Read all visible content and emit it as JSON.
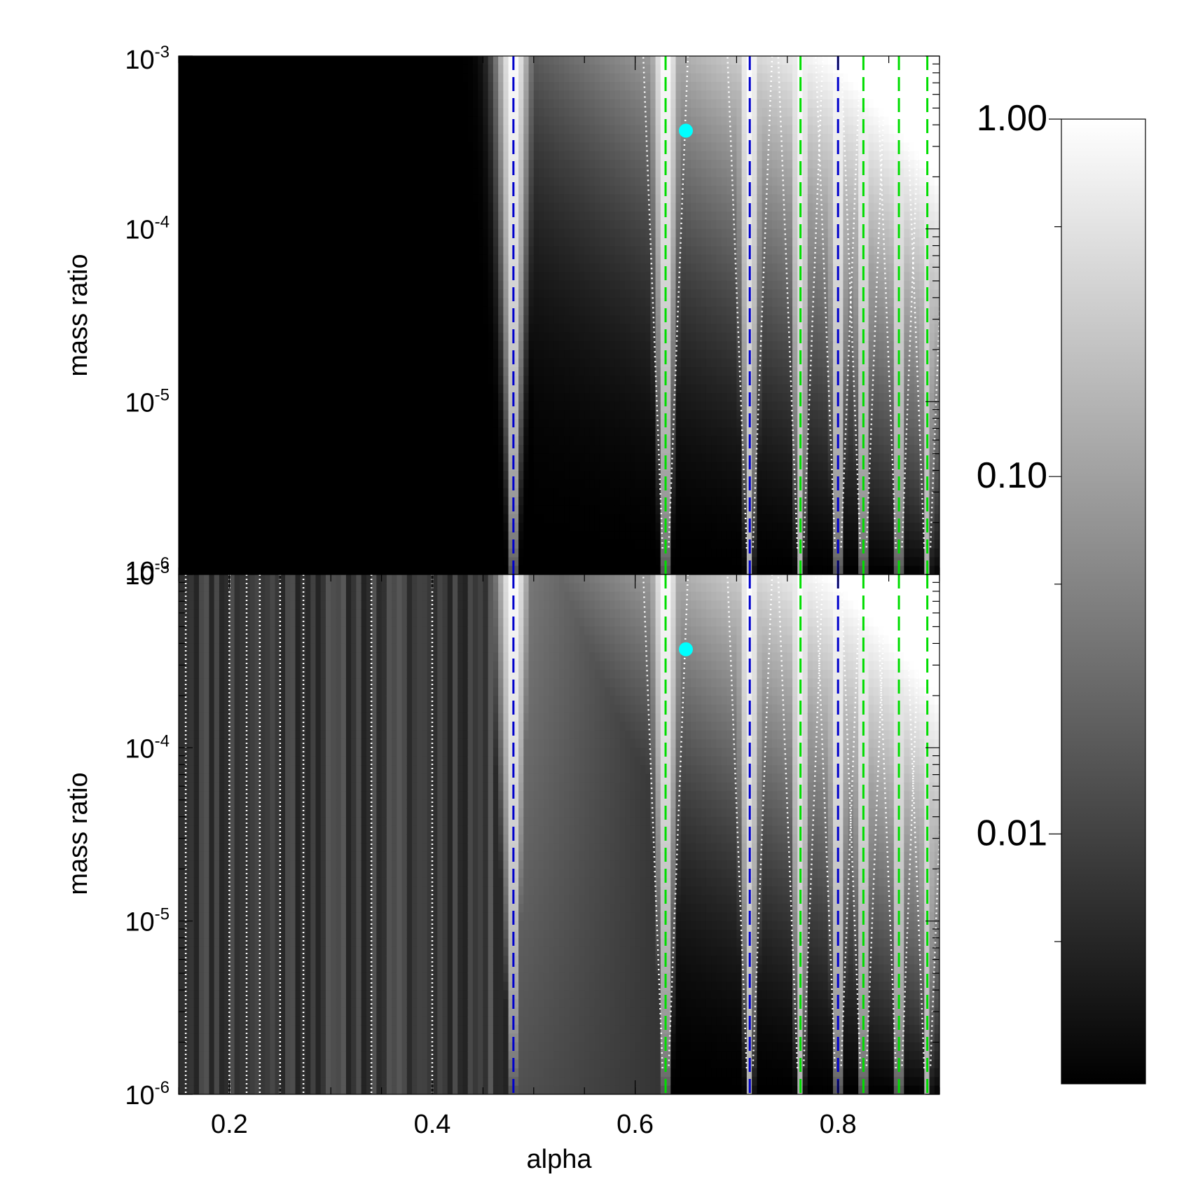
{
  "chart_data": [
    {
      "type": "heatmap",
      "panel": "top",
      "ylabel": "mass ratio",
      "xlabel": "",
      "xlim": [
        0.15,
        0.9
      ],
      "ylim": [
        1e-06,
        0.001
      ],
      "yscale": "log",
      "y_tick_labels": [
        {
          "value": 0.001,
          "base": "10",
          "exp": "-3"
        },
        {
          "value": 0.0001,
          "base": "10",
          "exp": "-4"
        },
        {
          "value": 1e-05,
          "base": "10",
          "exp": "-5"
        },
        {
          "value": 1e-06,
          "base": "10",
          "exp": "-6"
        }
      ],
      "blue_dashed_alpha": [
        0.48,
        0.713,
        0.8
      ],
      "green_dashed_alpha": [
        0.63,
        0.763,
        0.825,
        0.86,
        0.888
      ],
      "marker": {
        "alpha": 0.65,
        "mass_ratio": 0.00037,
        "color": "#00ffff"
      }
    },
    {
      "type": "heatmap",
      "panel": "bottom",
      "ylabel": "mass ratio",
      "xlabel": "alpha",
      "xlim": [
        0.15,
        0.9
      ],
      "ylim": [
        1e-06,
        0.001
      ],
      "yscale": "log",
      "x_tick_labels": [
        "0.2",
        "0.4",
        "0.6",
        "0.8"
      ],
      "x_ticks": [
        0.2,
        0.4,
        0.6,
        0.8
      ],
      "y_tick_labels": [
        {
          "value": 0.001,
          "base": "10",
          "exp": "-3"
        },
        {
          "value": 0.0001,
          "base": "10",
          "exp": "-4"
        },
        {
          "value": 1e-05,
          "base": "10",
          "exp": "-5"
        },
        {
          "value": 1e-06,
          "base": "10",
          "exp": "-6"
        }
      ],
      "blue_dashed_alpha": [
        0.48,
        0.713,
        0.8
      ],
      "green_dashed_alpha": [
        0.63,
        0.763,
        0.825,
        0.86,
        0.888
      ],
      "white_dotted_alpha": [
        0.157,
        0.2,
        0.217,
        0.23,
        0.25,
        0.273,
        0.34,
        0.4
      ],
      "marker": {
        "alpha": 0.65,
        "mass_ratio": 0.00037,
        "color": "#00ffff"
      }
    },
    {
      "type": "colorbar",
      "scale": "log",
      "range": [
        0.002,
        1.0
      ],
      "colors": [
        "#000000",
        "#ffffff"
      ],
      "tick_labels": [
        {
          "value": 1.0,
          "label": "1.00"
        },
        {
          "value": 0.1,
          "label": "0.10"
        },
        {
          "value": 0.01,
          "label": "0.01"
        }
      ],
      "minor_ticks": [
        0.5,
        0.05,
        0.005
      ]
    }
  ],
  "colors": {
    "blue_dash": "#0000cc",
    "green_dash": "#00dd00",
    "marker": "#00ffff",
    "dotted": "#ffffff"
  }
}
